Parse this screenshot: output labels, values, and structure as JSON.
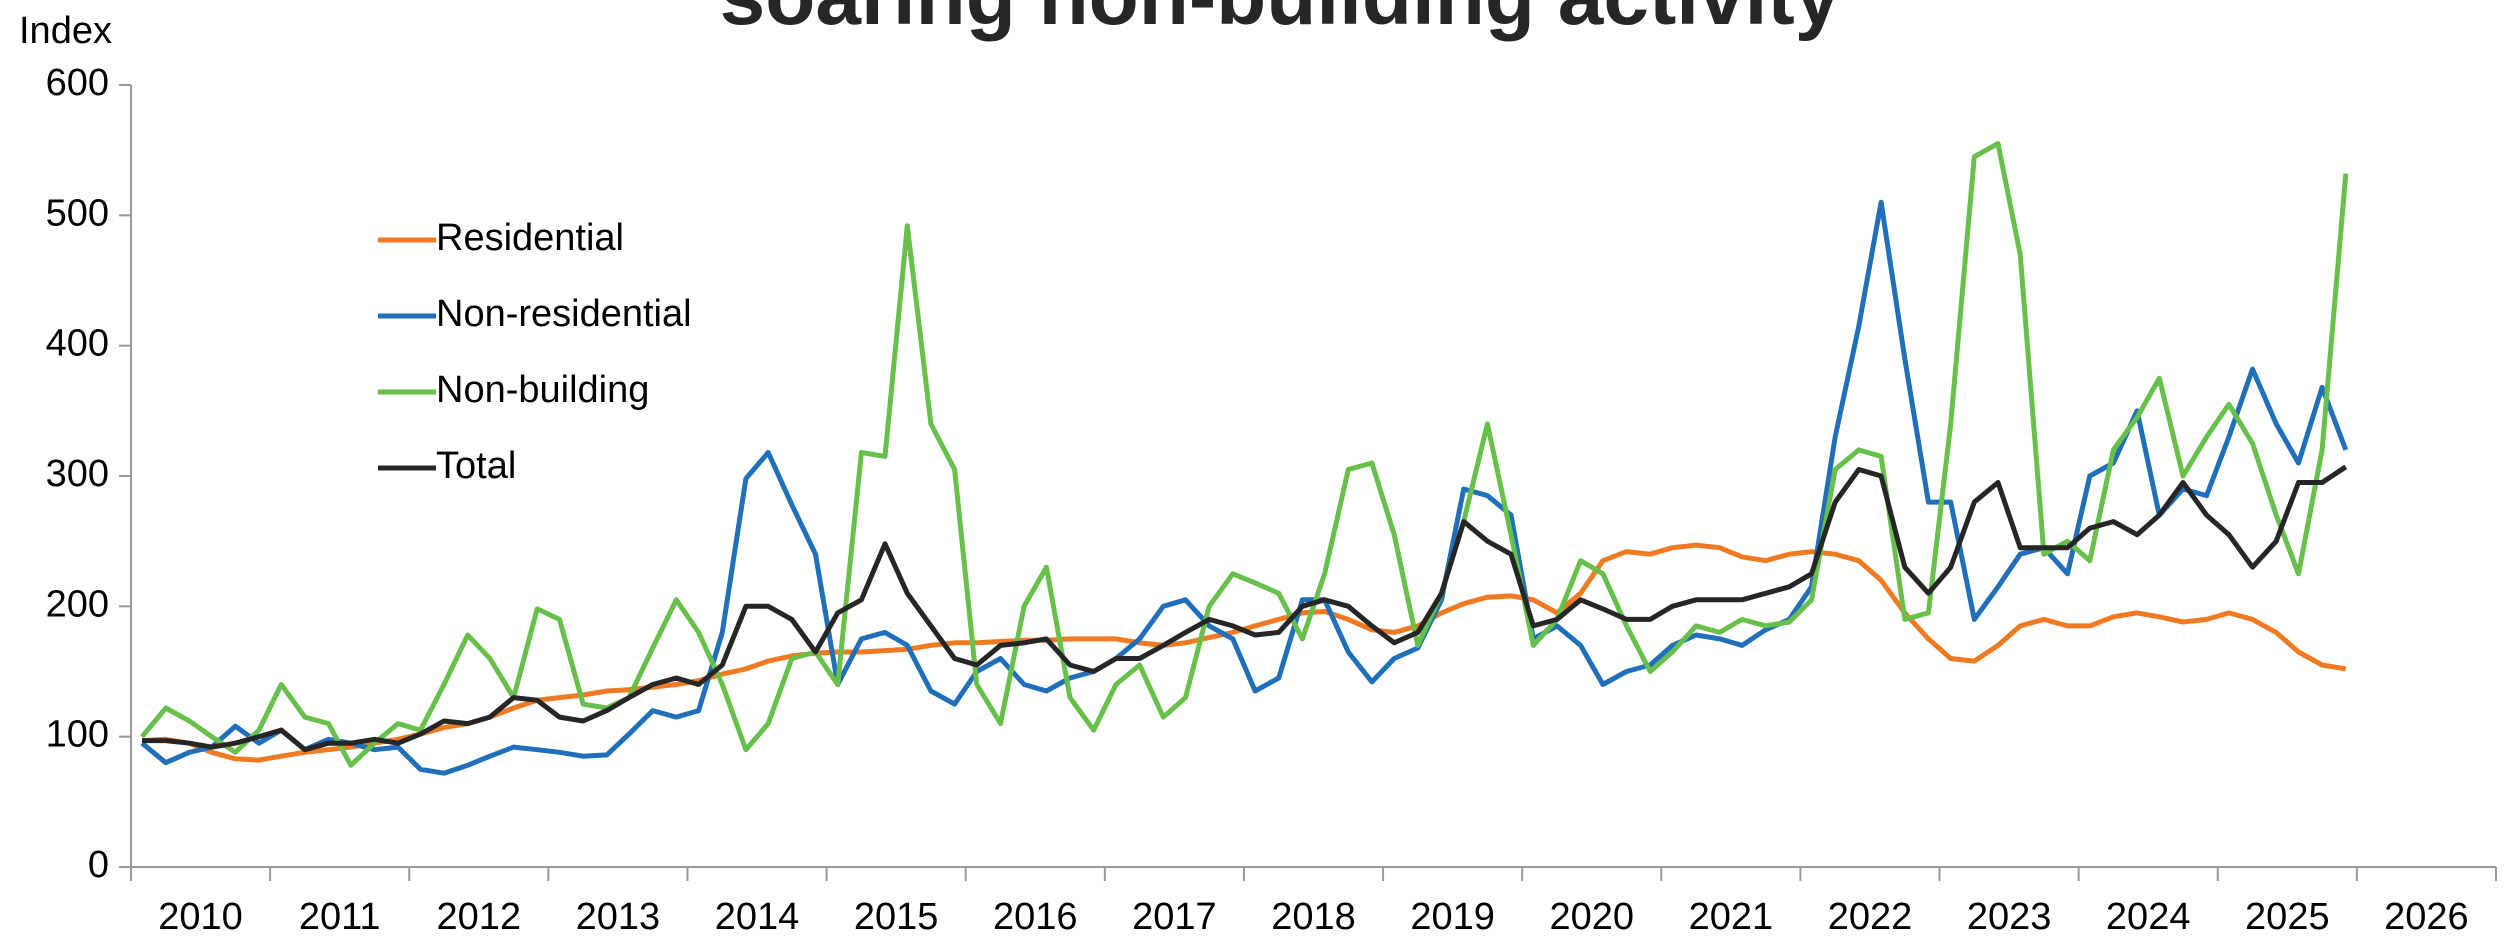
{
  "chart_data": {
    "type": "line",
    "title": "soaring non-building activity",
    "y_label": "Index",
    "xlim": [
      2010,
      2027
    ],
    "ylim": [
      0,
      600
    ],
    "yticks": [
      0,
      100,
      200,
      300,
      400,
      500,
      600
    ],
    "xticks": [
      {
        "value": 2010,
        "label": "2010"
      },
      {
        "value": 2011,
        "label": "2011"
      },
      {
        "value": 2012,
        "label": "2012"
      },
      {
        "value": 2013,
        "label": "2013"
      },
      {
        "value": 2014,
        "label": "2014"
      },
      {
        "value": 2015,
        "label": "2015"
      },
      {
        "value": 2016,
        "label": "2016"
      },
      {
        "value": 2017,
        "label": "2017"
      },
      {
        "value": 2018,
        "label": "2018"
      },
      {
        "value": 2019,
        "label": "2019"
      },
      {
        "value": 2020,
        "label": "2020"
      },
      {
        "value": 2021,
        "label": "2021"
      },
      {
        "value": 2022,
        "label": "2022"
      },
      {
        "value": 2023,
        "label": "2023"
      },
      {
        "value": 2024,
        "label": "2024"
      },
      {
        "value": 2025,
        "label": "2025"
      },
      {
        "value": 2026,
        "label": "2026"
      }
    ],
    "legend": "upper left",
    "x": [
      2010.08,
      2010.25,
      2010.42,
      2010.58,
      2010.75,
      2010.92,
      2011.08,
      2011.25,
      2011.42,
      2011.58,
      2011.75,
      2011.92,
      2012.08,
      2012.25,
      2012.42,
      2012.58,
      2012.75,
      2012.92,
      2013.08,
      2013.25,
      2013.42,
      2013.58,
      2013.75,
      2013.92,
      2014.08,
      2014.25,
      2014.42,
      2014.58,
      2014.75,
      2014.92,
      2015.08,
      2015.25,
      2015.42,
      2015.58,
      2015.75,
      2015.92,
      2016.08,
      2016.25,
      2016.42,
      2016.58,
      2016.75,
      2016.92,
      2017.08,
      2017.25,
      2017.42,
      2017.58,
      2017.75,
      2017.92,
      2018.08,
      2018.25,
      2018.42,
      2018.58,
      2018.75,
      2018.92,
      2019.08,
      2019.25,
      2019.42,
      2019.58,
      2019.75,
      2019.92,
      2020.08,
      2020.25,
      2020.42,
      2020.58,
      2020.75,
      2020.92,
      2021.08,
      2021.25,
      2021.42,
      2021.58,
      2021.75,
      2021.92,
      2022.08,
      2022.25,
      2022.42,
      2022.58,
      2022.75,
      2022.92,
      2023.08,
      2023.25,
      2023.42,
      2023.58,
      2023.75,
      2023.92,
      2024.08,
      2024.25,
      2024.42,
      2024.58,
      2024.75,
      2024.92,
      2025.08,
      2025.25,
      2025.42,
      2025.58,
      2025.75,
      2025.92
    ],
    "series": [
      {
        "name": "Residential",
        "color": "#f07a22",
        "values": [
          97,
          98,
          95,
          88,
          83,
          82,
          85,
          88,
          90,
          92,
          95,
          98,
          102,
          107,
          110,
          115,
          122,
          128,
          130,
          132,
          135,
          136,
          138,
          140,
          143,
          148,
          152,
          158,
          162,
          164,
          165,
          165,
          166,
          167,
          170,
          172,
          172,
          173,
          174,
          174,
          175,
          175,
          175,
          172,
          170,
          172,
          176,
          180,
          185,
          190,
          195,
          196,
          190,
          182,
          180,
          185,
          195,
          202,
          207,
          208,
          205,
          195,
          210,
          235,
          242,
          240,
          245,
          247,
          245,
          238,
          235,
          240,
          242,
          240,
          235,
          220,
          195,
          175,
          160,
          158,
          170,
          185,
          190,
          185,
          185,
          192,
          195,
          192,
          188,
          190,
          195,
          190,
          180,
          165,
          155,
          152
        ]
      },
      {
        "name": "Non-residential",
        "color": "#1f6fba",
        "values": [
          95,
          80,
          88,
          92,
          108,
          95,
          105,
          90,
          98,
          95,
          90,
          92,
          75,
          72,
          78,
          85,
          92,
          90,
          88,
          85,
          86,
          102,
          120,
          115,
          120,
          180,
          298,
          318,
          278,
          240,
          140,
          175,
          180,
          170,
          135,
          125,
          150,
          160,
          140,
          135,
          145,
          150,
          160,
          175,
          200,
          205,
          185,
          175,
          135,
          145,
          205,
          205,
          165,
          142,
          160,
          168,
          205,
          290,
          285,
          270,
          175,
          185,
          170,
          140,
          150,
          155,
          170,
          178,
          175,
          170,
          182,
          190,
          215,
          330,
          415,
          510,
          390,
          280,
          280,
          190,
          215,
          240,
          245,
          225,
          300,
          310,
          350,
          270,
          290,
          285,
          330,
          382,
          340,
          310,
          368,
          320
        ]
      },
      {
        "name": "Non-building",
        "color": "#66c04a",
        "values": [
          100,
          122,
          112,
          100,
          88,
          105,
          140,
          115,
          110,
          78,
          95,
          110,
          105,
          140,
          178,
          160,
          130,
          198,
          190,
          125,
          122,
          130,
          168,
          205,
          180,
          140,
          90,
          110,
          160,
          165,
          140,
          318,
          315,
          492,
          340,
          305,
          140,
          110,
          200,
          230,
          130,
          105,
          140,
          155,
          115,
          130,
          200,
          225,
          218,
          210,
          175,
          225,
          305,
          310,
          255,
          170,
          210,
          265,
          340,
          255,
          170,
          190,
          235,
          225,
          185,
          150,
          165,
          185,
          180,
          190,
          185,
          188,
          205,
          305,
          320,
          315,
          190,
          195,
          340,
          545,
          555,
          470,
          240,
          250,
          235,
          320,
          345,
          375,
          300,
          330,
          355,
          325,
          270,
          225,
          320,
          532
        ]
      },
      {
        "name": "Total",
        "color": "#262626",
        "values": [
          97,
          97,
          95,
          92,
          95,
          100,
          105,
          90,
          95,
          95,
          98,
          95,
          102,
          112,
          110,
          115,
          130,
          128,
          115,
          112,
          120,
          130,
          140,
          145,
          140,
          155,
          200,
          200,
          190,
          165,
          195,
          205,
          248,
          210,
          185,
          160,
          155,
          170,
          172,
          175,
          155,
          150,
          160,
          160,
          170,
          180,
          190,
          185,
          178,
          180,
          200,
          205,
          200,
          185,
          172,
          180,
          210,
          265,
          250,
          240,
          185,
          190,
          205,
          198,
          190,
          190,
          200,
          205,
          205,
          205,
          210,
          215,
          225,
          280,
          305,
          300,
          230,
          210,
          230,
          280,
          295,
          245,
          245,
          245,
          260,
          265,
          255,
          270,
          295,
          270,
          255,
          230,
          250,
          295,
          295,
          307
        ]
      }
    ]
  }
}
